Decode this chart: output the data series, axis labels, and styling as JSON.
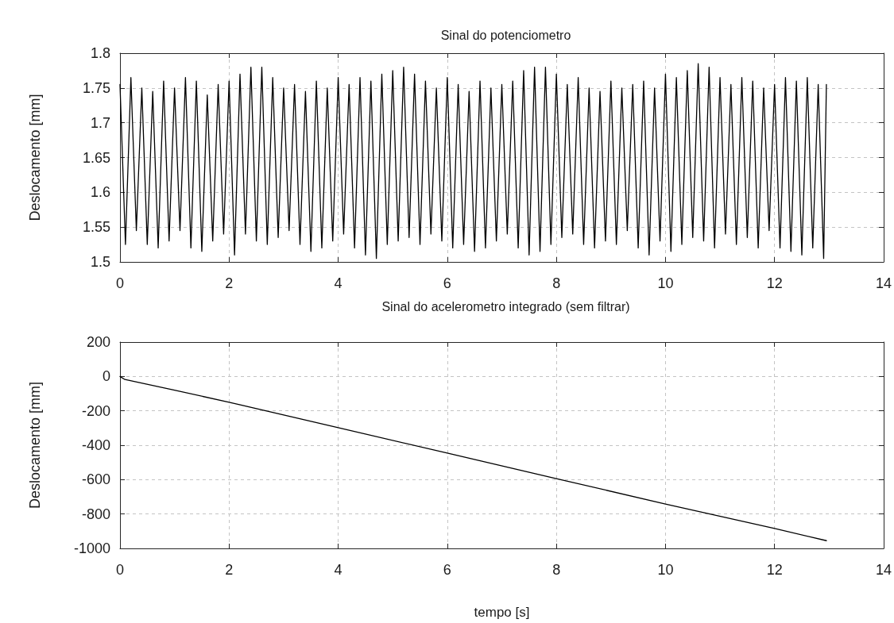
{
  "chart_data": [
    {
      "type": "line",
      "title": "Sinal do potenciometro",
      "ylabel": "Deslocamento [mm]",
      "color": "#000000",
      "grid": true,
      "xlim": [
        0,
        14
      ],
      "xticks": [
        0,
        2,
        4,
        6,
        8,
        10,
        12,
        14
      ],
      "ylim": [
        1.5,
        1.8
      ],
      "yticks": [
        1.5,
        1.55,
        1.6,
        1.65,
        1.7,
        1.75,
        1.8
      ],
      "x": [
        0,
        0.1,
        0.2,
        0.3,
        0.4,
        0.5,
        0.6,
        0.7,
        0.8,
        0.9,
        1,
        1.1,
        1.2,
        1.3,
        1.4,
        1.5,
        1.6,
        1.7,
        1.8,
        1.9,
        2,
        2.1,
        2.2,
        2.3,
        2.4,
        2.5,
        2.6,
        2.7,
        2.8,
        2.9,
        3,
        3.1,
        3.2,
        3.3,
        3.4,
        3.5,
        3.6,
        3.7,
        3.8,
        3.9,
        4,
        4.1,
        4.2,
        4.3,
        4.4,
        4.5,
        4.6,
        4.7,
        4.8,
        4.9,
        5,
        5.1,
        5.2,
        5.3,
        5.4,
        5.5,
        5.6,
        5.7,
        5.8,
        5.9,
        6,
        6.1,
        6.2,
        6.3,
        6.4,
        6.5,
        6.6,
        6.7,
        6.8,
        6.9,
        7,
        7.1,
        7.2,
        7.3,
        7.4,
        7.5,
        7.6,
        7.7,
        7.8,
        7.9,
        8,
        8.1,
        8.2,
        8.3,
        8.4,
        8.5,
        8.6,
        8.7,
        8.8,
        8.9,
        9,
        9.1,
        9.2,
        9.3,
        9.4,
        9.5,
        9.6,
        9.7,
        9.8,
        9.9,
        10,
        10.1,
        10.2,
        10.3,
        10.4,
        10.5,
        10.6,
        10.7,
        10.8,
        10.9,
        11,
        11.1,
        11.2,
        11.3,
        11.4,
        11.5,
        11.6,
        11.7,
        11.8,
        11.9,
        12,
        12.1,
        12.2,
        12.3,
        12.4,
        12.5,
        12.6,
        12.7,
        12.8,
        12.9,
        12.95
      ],
      "values": [
        1.755,
        1.525,
        1.765,
        1.545,
        1.75,
        1.525,
        1.745,
        1.52,
        1.76,
        1.53,
        1.75,
        1.545,
        1.765,
        1.52,
        1.76,
        1.515,
        1.74,
        1.53,
        1.755,
        1.54,
        1.76,
        1.51,
        1.77,
        1.54,
        1.78,
        1.53,
        1.78,
        1.525,
        1.765,
        1.535,
        1.75,
        1.545,
        1.755,
        1.525,
        1.745,
        1.515,
        1.76,
        1.52,
        1.75,
        1.53,
        1.765,
        1.54,
        1.755,
        1.52,
        1.765,
        1.51,
        1.76,
        1.505,
        1.77,
        1.525,
        1.775,
        1.53,
        1.78,
        1.535,
        1.77,
        1.525,
        1.76,
        1.54,
        1.75,
        1.53,
        1.765,
        1.52,
        1.755,
        1.525,
        1.745,
        1.515,
        1.76,
        1.52,
        1.75,
        1.53,
        1.755,
        1.54,
        1.76,
        1.52,
        1.775,
        1.51,
        1.78,
        1.515,
        1.78,
        1.525,
        1.77,
        1.535,
        1.755,
        1.54,
        1.765,
        1.525,
        1.75,
        1.52,
        1.745,
        1.53,
        1.76,
        1.525,
        1.75,
        1.545,
        1.755,
        1.52,
        1.76,
        1.51,
        1.75,
        1.53,
        1.77,
        1.515,
        1.765,
        1.525,
        1.775,
        1.535,
        1.785,
        1.53,
        1.78,
        1.52,
        1.765,
        1.54,
        1.755,
        1.525,
        1.765,
        1.535,
        1.76,
        1.52,
        1.75,
        1.545,
        1.755,
        1.52,
        1.765,
        1.515,
        1.76,
        1.51,
        1.765,
        1.52,
        1.755,
        1.505,
        1.755
      ]
    },
    {
      "type": "line",
      "title": "Sinal do acelerometro integrado (sem filtrar)",
      "xlabel": "tempo [s]",
      "ylabel": "Deslocamento [mm]",
      "color": "#000000",
      "grid": true,
      "xlim": [
        0,
        14
      ],
      "xticks": [
        0,
        2,
        4,
        6,
        8,
        10,
        12,
        14
      ],
      "ylim": [
        -1000,
        200
      ],
      "yticks": [
        -1000,
        -800,
        -600,
        -400,
        -200,
        0,
        200
      ],
      "x": [
        0,
        0.09,
        1,
        2,
        4,
        6,
        8,
        10,
        12,
        12.95
      ],
      "values": [
        0,
        -18,
        -80,
        -150,
        -298,
        -446,
        -594,
        -742,
        -884,
        -955
      ]
    }
  ]
}
